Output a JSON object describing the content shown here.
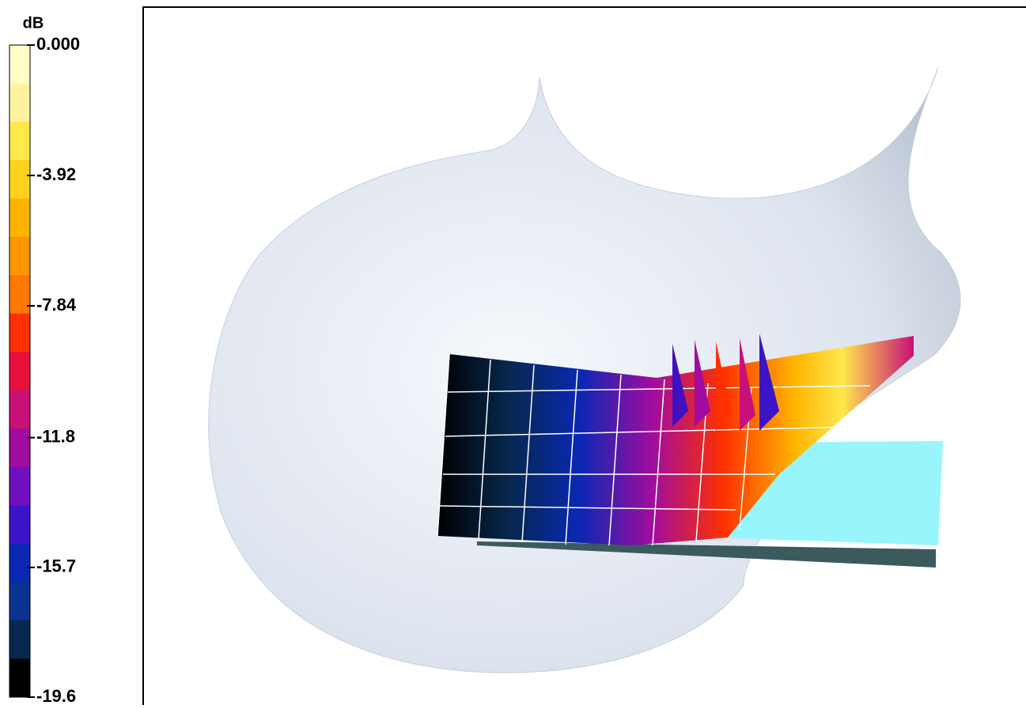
{
  "colorbar": {
    "unit": "dB",
    "ticks": [
      {
        "value": 0,
        "label": "0.000"
      },
      -3.92,
      -7.84,
      -11.8,
      -15.7,
      -19.6
    ],
    "colors": [
      "#ffffc8",
      "#fff3a0",
      "#ffe84a",
      "#ffd21e",
      "#ffb400",
      "#ff9600",
      "#ff7800",
      "#ff3000",
      "#e8103c",
      "#c81078",
      "#a00ca0",
      "#7010c0",
      "#3c14c8",
      "#0a28b4",
      "#0a3290",
      "#06284e",
      "#000000"
    ]
  }
}
